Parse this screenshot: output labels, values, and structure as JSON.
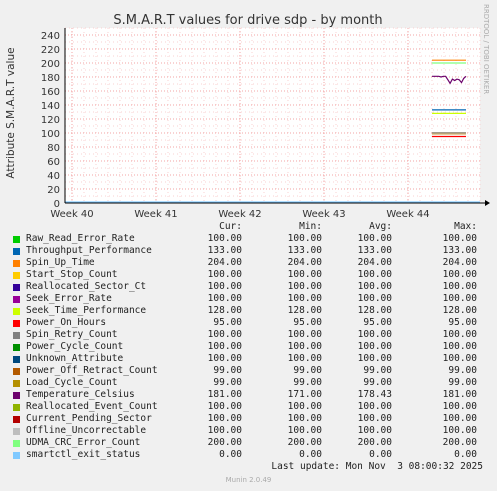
{
  "chart_data": {
    "type": "line",
    "title": "S.M.A.R.T values for drive sdp - by month",
    "ylabel": "Attribute S.M.A.R.T value",
    "side_label": "RRDTOOL / TOBI OETIKER",
    "xlabel": "",
    "ylim": [
      0,
      250
    ],
    "yticks": [
      0,
      20,
      40,
      60,
      80,
      100,
      120,
      140,
      160,
      180,
      200,
      220,
      240
    ],
    "x_categories": [
      "Week 40",
      "Week 41",
      "Week 42",
      "Week 43",
      "Week 44"
    ],
    "grid": true,
    "series": [
      {
        "name": "Raw_Read_Error_Rate",
        "color": "#00cc00",
        "cur": "100.00",
        "min": "100.00",
        "avg": "100.00",
        "max": "100.00",
        "level": 100
      },
      {
        "name": "Throughput_Performance",
        "color": "#0066b3",
        "cur": "133.00",
        "min": "133.00",
        "avg": "133.00",
        "max": "133.00",
        "level": 133
      },
      {
        "name": "Spin_Up_Time",
        "color": "#ff8000",
        "cur": "204.00",
        "min": "204.00",
        "avg": "204.00",
        "max": "204.00",
        "level": 204
      },
      {
        "name": "Start_Stop_Count",
        "color": "#ffcc00",
        "cur": "100.00",
        "min": "100.00",
        "avg": "100.00",
        "max": "100.00",
        "level": 100
      },
      {
        "name": "Reallocated_Sector_Ct",
        "color": "#330099",
        "cur": "100.00",
        "min": "100.00",
        "avg": "100.00",
        "max": "100.00",
        "level": 100
      },
      {
        "name": "Seek_Error_Rate",
        "color": "#990099",
        "cur": "100.00",
        "min": "100.00",
        "avg": "100.00",
        "max": "100.00",
        "level": 100
      },
      {
        "name": "Seek_Time_Performance",
        "color": "#ccff00",
        "cur": "128.00",
        "min": "128.00",
        "avg": "128.00",
        "max": "128.00",
        "level": 128
      },
      {
        "name": "Power_On_Hours",
        "color": "#ff0000",
        "cur": "95.00",
        "min": "95.00",
        "avg": "95.00",
        "max": "95.00",
        "level": 95
      },
      {
        "name": "Spin_Retry_Count",
        "color": "#808080",
        "cur": "100.00",
        "min": "100.00",
        "avg": "100.00",
        "max": "100.00",
        "level": 100
      },
      {
        "name": "Power_Cycle_Count",
        "color": "#008f00",
        "cur": "100.00",
        "min": "100.00",
        "avg": "100.00",
        "max": "100.00",
        "level": 100
      },
      {
        "name": "Unknown_Attribute",
        "color": "#00487d",
        "cur": "100.00",
        "min": "100.00",
        "avg": "100.00",
        "max": "100.00",
        "level": 100
      },
      {
        "name": "Power_Off_Retract_Count",
        "color": "#b35a00",
        "cur": "99.00",
        "min": "99.00",
        "avg": "99.00",
        "max": "99.00",
        "level": 99
      },
      {
        "name": "Load_Cycle_Count",
        "color": "#b38f00",
        "cur": "99.00",
        "min": "99.00",
        "avg": "99.00",
        "max": "99.00",
        "level": 99
      },
      {
        "name": "Temperature_Celsius",
        "color": "#6b006b",
        "cur": "181.00",
        "min": "171.00",
        "avg": "178.43",
        "max": "181.00",
        "level": 181
      },
      {
        "name": "Reallocated_Event_Count",
        "color": "#8fb300",
        "cur": "100.00",
        "min": "100.00",
        "avg": "100.00",
        "max": "100.00",
        "level": 100
      },
      {
        "name": "Current_Pending_Sector",
        "color": "#b30000",
        "cur": "100.00",
        "min": "100.00",
        "avg": "100.00",
        "max": "100.00",
        "level": 100
      },
      {
        "name": "Offline_Uncorrectable",
        "color": "#bebebe",
        "cur": "100.00",
        "min": "100.00",
        "avg": "100.00",
        "max": "100.00",
        "level": 100
      },
      {
        "name": "UDMA_CRC_Error_Count",
        "color": "#80ff80",
        "cur": "200.00",
        "min": "200.00",
        "avg": "200.00",
        "max": "200.00",
        "level": 200
      },
      {
        "name": "smartctl_exit_status",
        "color": "#80c9ff",
        "cur": "0.00",
        "min": "0.00",
        "avg": "0.00",
        "max": "0.00",
        "level": 0
      }
    ],
    "temperature_trace": [
      181,
      181,
      181,
      181,
      180,
      181,
      181,
      176,
      171,
      177,
      175,
      177,
      176,
      172,
      178,
      181
    ]
  },
  "legend_headers": {
    "cur": "Cur:",
    "min": "Min:",
    "avg": "Avg:",
    "max": "Max:"
  },
  "last_update": "Last update: Mon Nov  3 08:00:32 2025",
  "footer": "Munin 2.0.49"
}
